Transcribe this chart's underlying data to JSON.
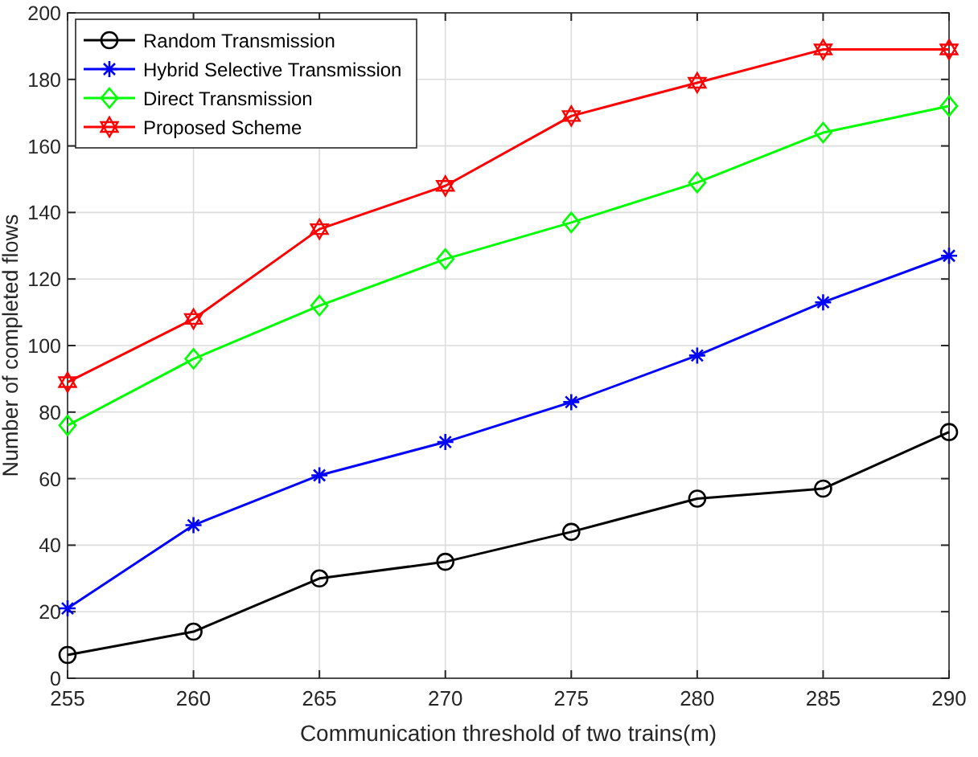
{
  "chart_data": {
    "type": "line",
    "xlabel": "Communication threshold of two trains(m)",
    "ylabel": "Number of completed flows",
    "x": [
      255,
      260,
      265,
      270,
      275,
      280,
      285,
      290
    ],
    "series": [
      {
        "name": "Random Transmission",
        "color": "#000000",
        "marker": "circle",
        "values": [
          7,
          14,
          30,
          35,
          44,
          54,
          57,
          74
        ]
      },
      {
        "name": "Hybrid Selective Transmission",
        "color": "#0000ff",
        "marker": "cross",
        "values": [
          21,
          46,
          61,
          71,
          83,
          97,
          113,
          127
        ]
      },
      {
        "name": "Direct Transmission",
        "color": "#00ff00",
        "marker": "diamond",
        "values": [
          76,
          96,
          112,
          126,
          137,
          149,
          164,
          172
        ]
      },
      {
        "name": "Proposed Scheme",
        "color": "#ff0000",
        "marker": "star",
        "values": [
          89,
          108,
          135,
          148,
          169,
          179,
          189,
          189
        ]
      }
    ],
    "xlim": [
      255,
      290
    ],
    "xticks": [
      255,
      260,
      265,
      270,
      275,
      280,
      285,
      290
    ],
    "ylim": [
      0,
      200
    ],
    "yticks": [
      0,
      20,
      40,
      60,
      80,
      100,
      120,
      140,
      160,
      180,
      200
    ],
    "grid": true,
    "legend": "top left",
    "line_style": "solid"
  }
}
